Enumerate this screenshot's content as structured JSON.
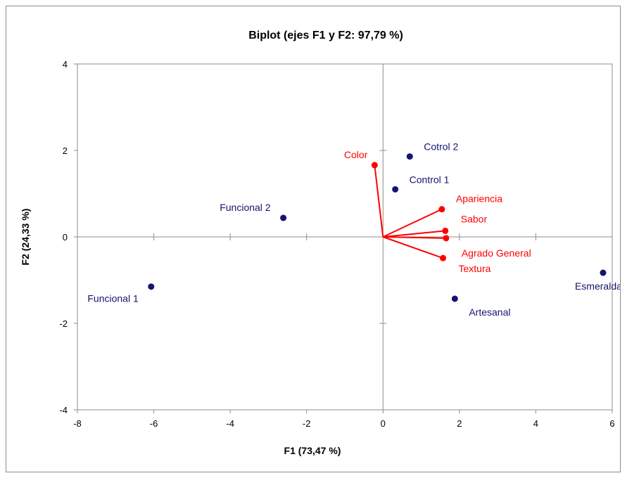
{
  "chart_data": {
    "type": "scatter",
    "title": "Biplot (ejes F1 y F2: 97,79 %)",
    "xlabel": "F1 (73,47 %)",
    "ylabel": "F2 (24,33 %)",
    "xlim": [
      -8,
      6
    ],
    "ylim": [
      -4,
      4
    ],
    "xticks": [
      "-8",
      "-6",
      "-4",
      "-2",
      "0",
      "2",
      "4",
      "6"
    ],
    "yticks": [
      "-4",
      "-2",
      "0",
      "2",
      "4"
    ],
    "grid": false,
    "observations": [
      {
        "label": "Funcional 1",
        "x": -6.07,
        "y": -1.15
      },
      {
        "label": "Funcional 2",
        "x": -2.61,
        "y": 0.44
      },
      {
        "label": "Control 1",
        "x": 0.32,
        "y": 1.1
      },
      {
        "label": "Cotrol 2",
        "x": 0.7,
        "y": 1.86
      },
      {
        "label": "Artesanal",
        "x": 1.88,
        "y": -1.43
      },
      {
        "label": "Esmeralda",
        "x": 5.76,
        "y": -0.83
      }
    ],
    "variables": [
      {
        "label": "Color",
        "x": -0.22,
        "y": 1.66
      },
      {
        "label": "Apariencia",
        "x": 1.54,
        "y": 0.64
      },
      {
        "label": "Sabor",
        "x": 1.63,
        "y": 0.14
      },
      {
        "label": "Agrado General",
        "x": 1.65,
        "y": -0.03
      },
      {
        "label": "Textura",
        "x": 1.57,
        "y": -0.49
      }
    ],
    "colors": {
      "observations": "#14146e",
      "variables": "#ff0000",
      "axes": "#8c8c8c"
    }
  }
}
